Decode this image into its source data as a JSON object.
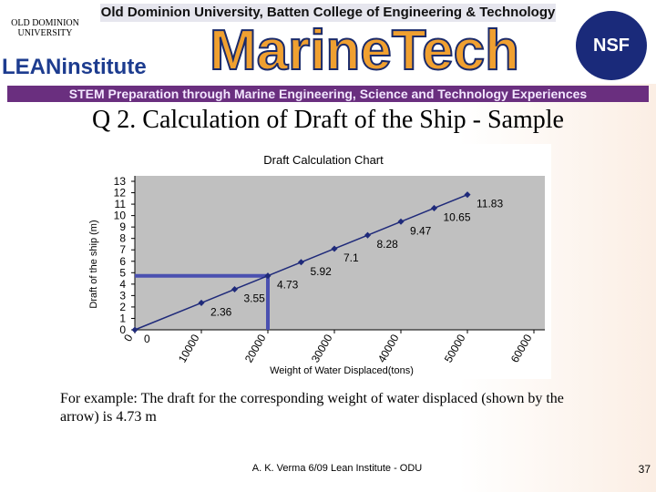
{
  "header": {
    "university": "Old Dominion University, Batten College of Engineering & Technology",
    "logo_left_top": "OLD DOMINION UNIVERSITY",
    "logo_left_bottom": "LEANinstitute",
    "brand": "MarineTech",
    "logo_right": "NSF",
    "banner": "STEM Preparation through Marine Engineering, Science and Technology Experiences"
  },
  "slide_title": "Q 2. Calculation of Draft of the Ship - Sample",
  "chart_data": {
    "type": "line",
    "title": "Draft Calculation Chart",
    "x_label": "Weight  of Water  Displaced(tons)",
    "y_label": "Draft of the ship (m)",
    "series": [
      {
        "name": "Draft",
        "color": "#1f2a7a",
        "x": [
          0,
          10000,
          15000,
          20000,
          25000,
          30000,
          35000,
          40000,
          45000,
          50000
        ],
        "values": [
          0,
          2.36,
          3.55,
          4.73,
          5.92,
          7.1,
          8.28,
          9.47,
          10.65,
          11.83
        ]
      }
    ],
    "xlim": [
      0,
      60000
    ],
    "xticks": [
      0,
      10000,
      20000,
      30000,
      40000,
      50000,
      60000
    ],
    "ylim": [
      0,
      13
    ],
    "yticks": [
      0,
      1,
      2,
      3,
      4,
      5,
      6,
      7,
      8,
      9,
      10,
      11,
      12,
      13
    ],
    "highlight_index": 3,
    "highlight_color": "#4a50b0"
  },
  "body": "For example: The draft for the corresponding weight of water displaced (shown by the arrow) is 4.73 m",
  "footer": "A. K. Verma 6/09  Lean Institute - ODU",
  "page_number": "37"
}
